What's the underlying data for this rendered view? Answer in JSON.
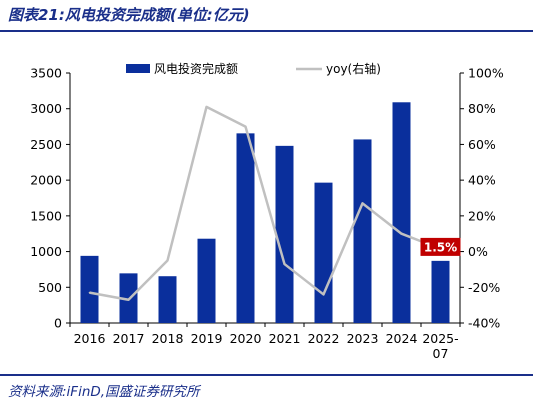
{
  "header": {
    "title": "图表21:风电投资完成额(单位:亿元)"
  },
  "footer": {
    "source": "资料来源:iFinD,国盛证券研究所"
  },
  "chart_data": {
    "type": "bar",
    "categories": [
      "2016",
      "2017",
      "2018",
      "2019",
      "2020",
      "2021",
      "2022",
      "2023",
      "2024",
      "2025-07"
    ],
    "category_lines": [
      [
        "2016"
      ],
      [
        "2017"
      ],
      [
        "2018"
      ],
      [
        "2019"
      ],
      [
        "2020"
      ],
      [
        "2021"
      ],
      [
        "2022"
      ],
      [
        "2023"
      ],
      [
        "2024"
      ],
      [
        "2025-",
        "07"
      ]
    ],
    "series": [
      {
        "name": "风电投资完成额",
        "type": "bar",
        "axis": "left",
        "color": "#0a2f9c",
        "values": [
          940,
          695,
          655,
          1180,
          2655,
          2480,
          1965,
          2570,
          3090,
          870
        ]
      },
      {
        "name": "yoy(右轴)",
        "type": "line",
        "axis": "right",
        "color": "#c0c0c0",
        "values": [
          -23,
          -27,
          -5,
          81,
          70,
          -7,
          -24,
          27,
          10,
          1.5
        ]
      }
    ],
    "ylim_left": [
      0,
      3500
    ],
    "yticks_left": [
      0,
      500,
      1000,
      1500,
      2000,
      2500,
      3000,
      3500
    ],
    "ytick_labels_left": [
      "0",
      "500",
      "1000",
      "1500",
      "2000",
      "2500",
      "3000",
      "3500"
    ],
    "ylim_right": [
      -40,
      100
    ],
    "yticks_right": [
      -40,
      -20,
      0,
      20,
      40,
      60,
      80,
      100
    ],
    "ytick_labels_right": [
      "-40%",
      "-20%",
      "0%",
      "20%",
      "40%",
      "60%",
      "80%",
      "100%"
    ],
    "legend_position": "top",
    "grid": false,
    "annotation": {
      "text": "1.5%",
      "category_index": 9,
      "color": "#c00000"
    }
  }
}
